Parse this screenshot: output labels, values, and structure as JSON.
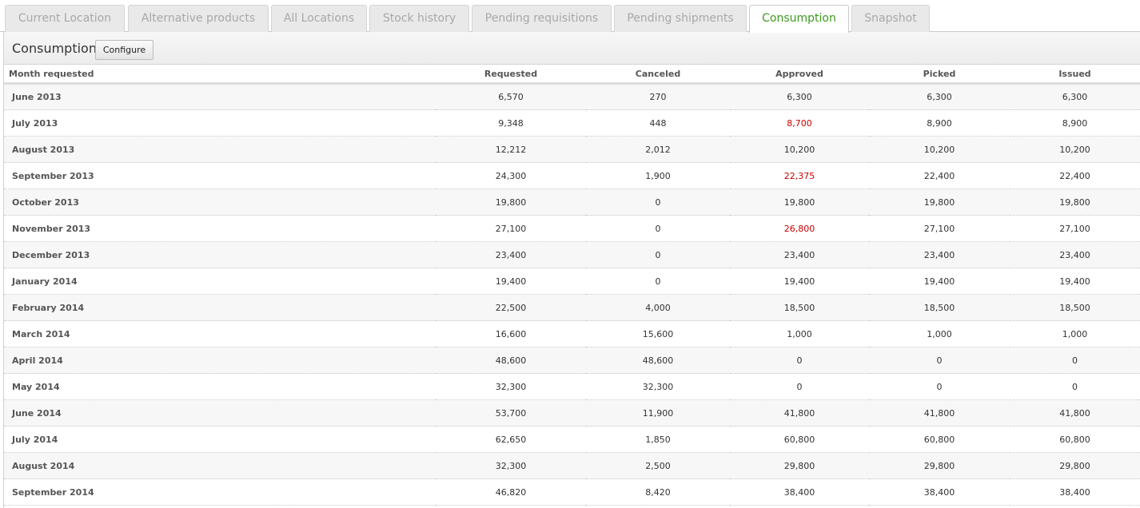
{
  "tabs": [
    {
      "label": "Current Location",
      "active": false
    },
    {
      "label": "Alternative products",
      "active": false
    },
    {
      "label": "All Locations",
      "active": false
    },
    {
      "label": "Stock history",
      "active": false
    },
    {
      "label": "Pending requisitions",
      "active": false
    },
    {
      "label": "Pending shipments",
      "active": false
    },
    {
      "label": "Consumption",
      "active": true
    },
    {
      "label": "Snapshot",
      "active": false
    }
  ],
  "panel": {
    "title": "Consumption",
    "configure_label": "Configure"
  },
  "table": {
    "columns": [
      "Month requested",
      "Requested",
      "Canceled",
      "Approved",
      "Picked",
      "Issued"
    ],
    "rows": [
      {
        "month": "June 2013",
        "requested": "6,570",
        "canceled": "270",
        "approved": "6,300",
        "picked": "6,300",
        "issued": "6,300",
        "approved_highlight": false
      },
      {
        "month": "July 2013",
        "requested": "9,348",
        "canceled": "448",
        "approved": "8,700",
        "picked": "8,900",
        "issued": "8,900",
        "approved_highlight": true
      },
      {
        "month": "August 2013",
        "requested": "12,212",
        "canceled": "2,012",
        "approved": "10,200",
        "picked": "10,200",
        "issued": "10,200",
        "approved_highlight": false
      },
      {
        "month": "September 2013",
        "requested": "24,300",
        "canceled": "1,900",
        "approved": "22,375",
        "picked": "22,400",
        "issued": "22,400",
        "approved_highlight": true
      },
      {
        "month": "October 2013",
        "requested": "19,800",
        "canceled": "0",
        "approved": "19,800",
        "picked": "19,800",
        "issued": "19,800",
        "approved_highlight": false
      },
      {
        "month": "November 2013",
        "requested": "27,100",
        "canceled": "0",
        "approved": "26,800",
        "picked": "27,100",
        "issued": "27,100",
        "approved_highlight": true
      },
      {
        "month": "December 2013",
        "requested": "23,400",
        "canceled": "0",
        "approved": "23,400",
        "picked": "23,400",
        "issued": "23,400",
        "approved_highlight": false
      },
      {
        "month": "January 2014",
        "requested": "19,400",
        "canceled": "0",
        "approved": "19,400",
        "picked": "19,400",
        "issued": "19,400",
        "approved_highlight": false
      },
      {
        "month": "February 2014",
        "requested": "22,500",
        "canceled": "4,000",
        "approved": "18,500",
        "picked": "18,500",
        "issued": "18,500",
        "approved_highlight": false
      },
      {
        "month": "March 2014",
        "requested": "16,600",
        "canceled": "15,600",
        "approved": "1,000",
        "picked": "1,000",
        "issued": "1,000",
        "approved_highlight": false
      },
      {
        "month": "April 2014",
        "requested": "48,600",
        "canceled": "48,600",
        "approved": "0",
        "picked": "0",
        "issued": "0",
        "approved_highlight": false
      },
      {
        "month": "May 2014",
        "requested": "32,300",
        "canceled": "32,300",
        "approved": "0",
        "picked": "0",
        "issued": "0",
        "approved_highlight": false
      },
      {
        "month": "June 2014",
        "requested": "53,700",
        "canceled": "11,900",
        "approved": "41,800",
        "picked": "41,800",
        "issued": "41,800",
        "approved_highlight": false
      },
      {
        "month": "July 2014",
        "requested": "62,650",
        "canceled": "1,850",
        "approved": "60,800",
        "picked": "60,800",
        "issued": "60,800",
        "approved_highlight": false
      },
      {
        "month": "August 2014",
        "requested": "32,300",
        "canceled": "2,500",
        "approved": "29,800",
        "picked": "29,800",
        "issued": "29,800",
        "approved_highlight": false
      },
      {
        "month": "September 2014",
        "requested": "46,820",
        "canceled": "8,420",
        "approved": "38,400",
        "picked": "38,400",
        "issued": "38,400",
        "approved_highlight": false
      }
    ]
  },
  "colors": {
    "active_tab": "#3c9a1e",
    "highlight": "#cc0000"
  }
}
